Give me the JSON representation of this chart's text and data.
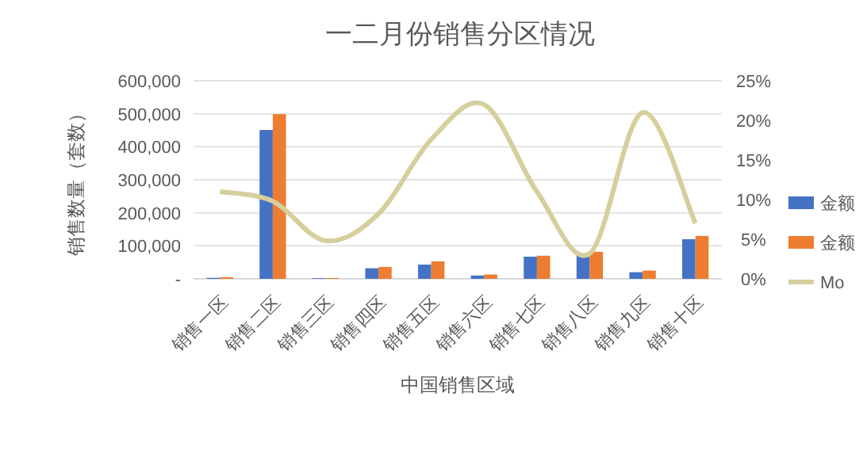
{
  "chart_data": {
    "type": "bar",
    "title": "一二月份销售分区情况",
    "xlabel": "中国销售区域",
    "ylabel": "销售数量（套数）",
    "categories": [
      "销售一区",
      "销售二区",
      "销售三区",
      "销售四区",
      "销售五区",
      "销售六区",
      "销售七区",
      "销售八区",
      "销售九区",
      "销售十区"
    ],
    "series": [
      {
        "name": "金额",
        "color": "#4472c4",
        "values": [
          3000,
          451000,
          2000,
          32000,
          43000,
          10000,
          67000,
          75000,
          20000,
          120000
        ]
      },
      {
        "name": "金额",
        "color": "#ed7d31",
        "values": [
          5000,
          499000,
          2500,
          36000,
          53000,
          13000,
          70000,
          82000,
          25000,
          130000
        ]
      },
      {
        "name": "Mo",
        "type": "line",
        "axis": "y2",
        "color": "#d6cf9c",
        "values": [
          11,
          9.8,
          4.8,
          8.2,
          17.6,
          22,
          11,
          3.2,
          21,
          7
        ]
      }
    ],
    "ylim": [
      0,
      600000
    ],
    "yticks": [
      {
        "value": 0,
        "label": "-"
      },
      {
        "value": 100000,
        "label": "100,000"
      },
      {
        "value": 200000,
        "label": "200,000"
      },
      {
        "value": 300000,
        "label": "300,000"
      },
      {
        "value": 400000,
        "label": "400,000"
      },
      {
        "value": 500000,
        "label": "500,000"
      },
      {
        "value": 600000,
        "label": "600,000"
      }
    ],
    "y2lim": [
      0,
      25
    ],
    "y2ticks": [
      {
        "value": 0,
        "label": "0%"
      },
      {
        "value": 5,
        "label": "5%"
      },
      {
        "value": 10,
        "label": "10%"
      },
      {
        "value": 15,
        "label": "15%"
      },
      {
        "value": 20,
        "label": "20%"
      },
      {
        "value": 25,
        "label": "25%"
      }
    ],
    "grid": "y",
    "legend": "right"
  }
}
